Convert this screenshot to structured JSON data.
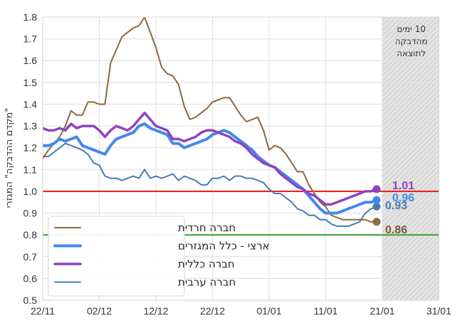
{
  "chart_data": {
    "type": "line",
    "title": "",
    "xlabel": "",
    "ylabel": "\"מקדם ההדבקה\" המגזרי",
    "ylim": [
      0.5,
      1.8
    ],
    "yticks": [
      "0.5",
      "0.6",
      "0.7",
      "0.8",
      "0.9",
      "1.0",
      "1.1",
      "1.2",
      "1.3",
      "1.4",
      "1.5",
      "1.6",
      "1.7",
      "1.8"
    ],
    "xticks": [
      "22/11",
      "02/12",
      "12/12",
      "22/12",
      "01/01",
      "11/01",
      "21/01",
      "31/01"
    ],
    "grid": true,
    "legend_position": "lower left",
    "reference_lines": [
      {
        "value": 1.0,
        "color": "#ee2222"
      },
      {
        "value": 0.8,
        "color": "#44aa44"
      }
    ],
    "shaded_region": {
      "from": "21/01",
      "to": "31/01",
      "label": "10 ימים מהדבקה לתוצאה"
    },
    "x_days": [
      0,
      1,
      2,
      3,
      4,
      5,
      6,
      7,
      8,
      9,
      10,
      11,
      12,
      13,
      14,
      15,
      16,
      17,
      18,
      19,
      20,
      21,
      22,
      23,
      24,
      25,
      26,
      27,
      28,
      29,
      30,
      31,
      32,
      33,
      34,
      35,
      36,
      37,
      38,
      39,
      40,
      41,
      42,
      43,
      44,
      45,
      46,
      47,
      48,
      49,
      50,
      51,
      52,
      53,
      54,
      55,
      56,
      57,
      58,
      59
    ],
    "series": [
      {
        "name": "חברה חרדית",
        "color": "#8b6a3e",
        "width": 2,
        "end_value": "0.86",
        "values": [
          1.15,
          1.19,
          1.22,
          1.25,
          1.3,
          1.37,
          1.35,
          1.35,
          1.41,
          1.41,
          1.4,
          1.4,
          1.59,
          1.65,
          1.71,
          1.73,
          1.75,
          1.76,
          1.8,
          1.73,
          1.66,
          1.57,
          1.54,
          1.53,
          1.49,
          1.39,
          1.33,
          1.34,
          1.36,
          1.38,
          1.41,
          1.42,
          1.43,
          1.43,
          1.39,
          1.35,
          1.32,
          1.33,
          1.34,
          1.28,
          1.19,
          1.21,
          1.2,
          1.17,
          1.13,
          1.09,
          1.09,
          1.03,
          0.99,
          0.95,
          0.93,
          0.89,
          0.88,
          0.87,
          0.87,
          0.87,
          0.87,
          0.87,
          0.86,
          0.86
        ]
      },
      {
        "name": "ארצי - כלל המגזרים",
        "color": "#4488ee",
        "width": 4,
        "end_value": "0.96",
        "values": [
          1.21,
          1.21,
          1.22,
          1.24,
          1.23,
          1.24,
          1.25,
          1.21,
          1.2,
          1.19,
          1.18,
          1.17,
          1.21,
          1.24,
          1.25,
          1.26,
          1.27,
          1.3,
          1.31,
          1.29,
          1.28,
          1.27,
          1.26,
          1.22,
          1.22,
          1.2,
          1.21,
          1.22,
          1.23,
          1.24,
          1.26,
          1.27,
          1.28,
          1.27,
          1.25,
          1.23,
          1.21,
          1.19,
          1.16,
          1.14,
          1.12,
          1.11,
          1.09,
          1.07,
          1.05,
          1.03,
          1.01,
          0.98,
          0.95,
          0.92,
          0.9,
          0.9,
          0.9,
          0.91,
          0.92,
          0.93,
          0.94,
          0.95,
          0.95,
          0.96
        ]
      },
      {
        "name": "חברה כללית",
        "color": "#8e44c0",
        "width": 3.5,
        "end_value": "1.01",
        "values": [
          1.29,
          1.28,
          1.28,
          1.29,
          1.28,
          1.31,
          1.29,
          1.3,
          1.3,
          1.3,
          1.28,
          1.25,
          1.28,
          1.3,
          1.29,
          1.28,
          1.3,
          1.33,
          1.36,
          1.33,
          1.3,
          1.29,
          1.28,
          1.24,
          1.24,
          1.23,
          1.24,
          1.25,
          1.27,
          1.28,
          1.28,
          1.27,
          1.26,
          1.25,
          1.23,
          1.22,
          1.2,
          1.17,
          1.15,
          1.13,
          1.12,
          1.11,
          1.08,
          1.06,
          1.04,
          1.02,
          1.01,
          0.99,
          0.98,
          0.96,
          0.94,
          0.94,
          0.95,
          0.96,
          0.97,
          0.98,
          0.99,
          1.0,
          1.0,
          1.01
        ]
      },
      {
        "name": "חברה ערבית",
        "color": "#4a7ab0",
        "width": 2,
        "end_value": "0.93",
        "values": [
          1.16,
          1.16,
          1.18,
          1.2,
          1.22,
          1.21,
          1.2,
          1.19,
          1.17,
          1.13,
          1.12,
          1.07,
          1.06,
          1.06,
          1.05,
          1.06,
          1.07,
          1.06,
          1.1,
          1.06,
          1.07,
          1.06,
          1.07,
          1.08,
          1.05,
          1.07,
          1.06,
          1.05,
          1.03,
          1.03,
          1.06,
          1.06,
          1.07,
          1.05,
          1.07,
          1.07,
          1.06,
          1.06,
          1.05,
          1.04,
          1.01,
          0.99,
          0.99,
          0.97,
          0.95,
          0.92,
          0.91,
          0.89,
          0.89,
          0.87,
          0.87,
          0.85,
          0.84,
          0.84,
          0.84,
          0.85,
          0.86,
          0.9,
          0.92,
          0.93
        ]
      }
    ]
  },
  "legend": {
    "items": [
      {
        "label": "חברה חרדית",
        "color": "#8b6a3e",
        "width": 2
      },
      {
        "label": "ארצי - כלל המגזרים",
        "color": "#4488ee",
        "width": 4
      },
      {
        "label": "חברה כללית",
        "color": "#8e44c0",
        "width": 3.5
      },
      {
        "label": "חברה ערבית",
        "color": "#4a7ab0",
        "width": 2
      }
    ]
  },
  "annotation": {
    "lines": [
      "10 ימים",
      "מהדבקה",
      "לתוצאה"
    ]
  },
  "end_labels": [
    {
      "text": "1.01",
      "color": "#8e44c0"
    },
    {
      "text": "0.96",
      "color": "#4488ee"
    },
    {
      "text": "0.93",
      "color": "#4a7ab0"
    },
    {
      "text": "0.86",
      "color": "#7a5a30"
    }
  ]
}
